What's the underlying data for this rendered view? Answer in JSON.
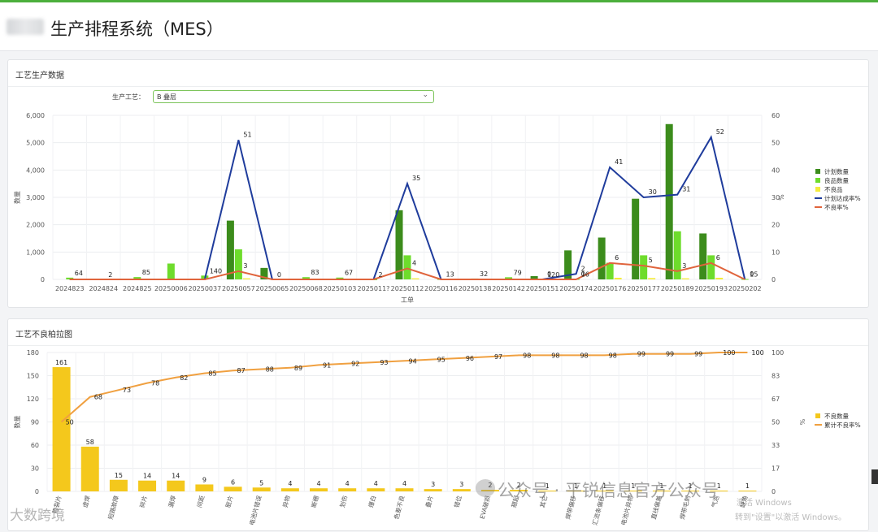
{
  "app": {
    "title": "生产排程系统（MES）"
  },
  "panel1": {
    "title": "工艺生产数据",
    "filter_label": "生产工艺：",
    "filter_value": "B 叠层"
  },
  "panel2": {
    "title": "工艺不良柏拉图"
  },
  "colors": {
    "plan": "#3c8c1c",
    "good": "#6edc2c",
    "defect": "#f4ec3c",
    "rate": "#1f3c9c",
    "defect_rate": "#e0643c",
    "pareto_bar": "#f4c81c",
    "pareto_line": "#f0a040",
    "accent": "#4caf3c"
  },
  "watermark": {
    "text": "公众号 · 平锐信息官方公众号",
    "left_text": "大数跨境",
    "win1": "激活 Windows",
    "win2": "转到\"设置\"以激活 Windows。"
  },
  "chart_data": [
    {
      "type": "bar",
      "title": "",
      "xlabel": "工单",
      "ylabel": "数量",
      "y2label": "%",
      "ylim": [
        0,
        6000
      ],
      "y2lim": [
        0,
        60
      ],
      "yticks": [
        "0",
        "1,000",
        "2,000",
        "3,000",
        "4,000",
        "5,000",
        "6,000"
      ],
      "y2ticks": [
        "0",
        "10",
        "20",
        "30",
        "40",
        "50",
        "60"
      ],
      "grid": true,
      "legend": "right",
      "categories": [
        "2024823",
        "2024824",
        "2024825",
        "20250006",
        "20250037",
        "20250057",
        "20250065",
        "20250068",
        "20250103",
        "2025011?",
        "20250112",
        "20250116",
        "20250138",
        "20250142",
        "20250151",
        "20250174",
        "20250176",
        "20250177",
        "20250189",
        "20250193",
        "20250202"
      ],
      "series": [
        {
          "name": "计划数量",
          "kind": "bar",
          "axis": "left",
          "values": [
            0,
            0,
            0,
            0,
            0,
            2150,
            420,
            0,
            0,
            0,
            2530,
            0,
            0,
            0,
            120,
            1060,
            1530,
            2950,
            5680,
            1680,
            0
          ]
        },
        {
          "name": "良品数量",
          "kind": "bar",
          "axis": "left",
          "values": [
            64,
            2,
            85,
            580,
            140,
            1100,
            0,
            83,
            67,
            2,
            880,
            13,
            32,
            79,
            0,
            16,
            610,
            880,
            1760,
            880,
            15
          ]
        },
        {
          "name": "不良品",
          "kind": "bar",
          "axis": "left",
          "values": [
            0,
            0,
            0,
            0,
            0,
            40,
            0,
            0,
            0,
            0,
            40,
            0,
            0,
            0,
            0,
            0,
            60,
            50,
            40,
            60,
            0
          ]
        },
        {
          "name": "计划达成率%",
          "kind": "line",
          "axis": "right",
          "values": [
            0,
            0,
            0,
            0,
            0,
            51,
            0,
            0,
            0,
            0,
            35,
            0,
            0,
            0,
            0,
            2,
            41,
            30,
            31,
            52,
            0
          ]
        },
        {
          "name": "不良率%",
          "kind": "line",
          "axis": "right",
          "values": [
            0,
            0,
            0,
            0,
            0,
            3,
            0,
            0,
            0,
            0,
            4,
            0,
            0,
            0,
            0,
            0,
            6,
            5,
            3,
            6,
            0
          ]
        }
      ],
      "annotations": [
        {
          "i": 0,
          "label": "64"
        },
        {
          "i": 1,
          "label": "2"
        },
        {
          "i": 2,
          "label": "85"
        },
        {
          "i": 4,
          "label": "140"
        },
        {
          "i": 5,
          "label": "51",
          "on": "rate"
        },
        {
          "i": 5,
          "label": "3",
          "on": "defect_rate"
        },
        {
          "i": 6,
          "label": "0"
        },
        {
          "i": 7,
          "label": "83"
        },
        {
          "i": 8,
          "label": "67"
        },
        {
          "i": 9,
          "label": "2"
        },
        {
          "i": 10,
          "label": "35",
          "on": "rate"
        },
        {
          "i": 10,
          "label": "4",
          "on": "defect_rate"
        },
        {
          "i": 11,
          "label": "13"
        },
        {
          "i": 12,
          "label": "32"
        },
        {
          "i": 13,
          "label": "79"
        },
        {
          "i": 14,
          "label": "120"
        },
        {
          "i": 14,
          "label": "0",
          "on": "rate"
        },
        {
          "i": 15,
          "label": "16"
        },
        {
          "i": 15,
          "label": "2",
          "on": "rate"
        },
        {
          "i": 15,
          "label": "0",
          "on": "defect_rate"
        },
        {
          "i": 16,
          "label": "41",
          "on": "rate"
        },
        {
          "i": 16,
          "label": "6",
          "on": "defect_rate"
        },
        {
          "i": 17,
          "label": "30",
          "on": "rate"
        },
        {
          "i": 17,
          "label": "5",
          "on": "defect_rate"
        },
        {
          "i": 18,
          "label": "31",
          "on": "rate"
        },
        {
          "i": 18,
          "label": "3",
          "on": "defect_rate"
        },
        {
          "i": 19,
          "label": "52",
          "on": "rate"
        },
        {
          "i": 19,
          "label": "6",
          "on": "defect_rate"
        },
        {
          "i": 20,
          "label": "15"
        },
        {
          "i": 20,
          "label": "0",
          "on": "defect_rate"
        }
      ]
    },
    {
      "type": "bar",
      "title": "",
      "ylabel": "数量",
      "y2label": "%",
      "ylim": [
        0,
        180
      ],
      "y2lim": [
        0,
        100
      ],
      "yticks": [
        "0",
        "30",
        "60",
        "90",
        "120",
        "150",
        "180"
      ],
      "y2ticks": [
        "0",
        "17",
        "33",
        "50",
        "67",
        "83",
        "100"
      ],
      "grid": true,
      "legend": "right",
      "categories": [
        "隐裂片",
        "虚焊",
        "短路故障",
        "碎片",
        "漏焊",
        "间距",
        "脏片",
        "电池片错误",
        "异物",
        "断栅",
        "划伤",
        "爆白",
        "色差不良",
        "叠片",
        "错位",
        "EVA破损",
        "翘起",
        "其它",
        "焊带偏移",
        "汇流条偏移",
        "电池片异物",
        "直线偏差",
        "焊带毛刺",
        "气泡",
        "缺角"
      ],
      "series": [
        {
          "name": "不良数量",
          "kind": "bar",
          "axis": "left",
          "values": [
            161,
            58,
            15,
            14,
            14,
            9,
            6,
            5,
            4,
            4,
            4,
            4,
            4,
            3,
            3,
            2,
            2,
            1,
            1,
            1,
            1,
            1,
            1,
            1,
            1
          ]
        },
        {
          "name": "累计不良率%",
          "kind": "line",
          "axis": "right",
          "values": [
            50,
            68,
            73,
            78,
            82,
            85,
            87,
            88,
            89,
            91,
            92,
            93,
            94,
            95,
            96,
            97,
            98,
            98,
            98,
            98,
            99,
            99,
            99,
            100,
            100
          ]
        }
      ]
    }
  ]
}
